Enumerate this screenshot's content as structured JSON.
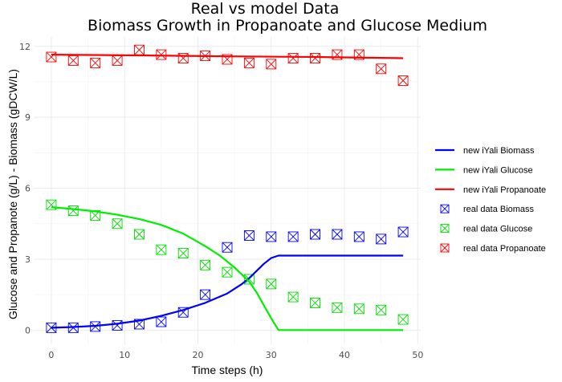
{
  "chart_data": {
    "type": "line",
    "title": "Real vs model Data",
    "subtitle": "Biomass Growth in Propanoate and Glucose Medium",
    "xlabel": "Time steps (h)",
    "ylabel": "Glucose and Propanote (g/L) - Biomass (gDCW/L)",
    "xlim": [
      -2.4,
      50.4
    ],
    "ylim": [
      -0.6,
      12.4
    ],
    "x_ticks": [
      0,
      10,
      20,
      30,
      40,
      50
    ],
    "y_ticks": [
      0,
      3,
      6,
      9,
      12
    ],
    "grid": true,
    "legend_position": "right",
    "series": [
      {
        "name": "new iYali Biomass",
        "kind": "line",
        "color": "#0000ff",
        "x": [
          0,
          3,
          6,
          9,
          12,
          15,
          18,
          21,
          24,
          26,
          27,
          28,
          29,
          30,
          31,
          35,
          40,
          45,
          48
        ],
        "y": [
          0.1,
          0.13,
          0.18,
          0.27,
          0.4,
          0.6,
          0.85,
          1.15,
          1.55,
          1.95,
          2.2,
          2.5,
          2.8,
          3.05,
          3.15,
          3.15,
          3.15,
          3.15,
          3.15
        ]
      },
      {
        "name": "new iYali Glucose",
        "kind": "line",
        "color": "#00ee00",
        "x": [
          0,
          3,
          6,
          9,
          12,
          15,
          18,
          21,
          23,
          25,
          27,
          28,
          29,
          30,
          31,
          35,
          40,
          45,
          48
        ],
        "y": [
          5.2,
          5.12,
          5.02,
          4.88,
          4.7,
          4.45,
          4.08,
          3.55,
          3.15,
          2.65,
          2.05,
          1.6,
          1.05,
          0.5,
          0.0,
          0.0,
          0.0,
          0.0,
          0.0
        ]
      },
      {
        "name": "new iYali Propanoate",
        "kind": "line",
        "color": "#ff0000",
        "x": [
          0,
          12,
          24,
          36,
          48
        ],
        "y": [
          11.65,
          11.62,
          11.58,
          11.55,
          11.5
        ]
      },
      {
        "name": "real data Biomass",
        "kind": "points",
        "color": "#0000ff",
        "x": [
          0,
          3,
          6,
          9,
          12,
          15,
          18,
          21,
          24,
          27,
          30,
          33,
          36,
          39,
          42,
          45,
          48
        ],
        "y": [
          0.1,
          0.1,
          0.15,
          0.2,
          0.25,
          0.35,
          0.75,
          1.5,
          3.5,
          4.0,
          3.95,
          3.95,
          4.05,
          4.05,
          3.95,
          3.85,
          4.15
        ]
      },
      {
        "name": "real data Glucose",
        "kind": "points",
        "color": "#00dd00",
        "x": [
          0,
          3,
          6,
          9,
          12,
          15,
          18,
          21,
          24,
          27,
          30,
          33,
          36,
          39,
          42,
          45,
          48
        ],
        "y": [
          5.3,
          5.05,
          4.85,
          4.5,
          4.05,
          3.4,
          3.25,
          2.75,
          2.45,
          2.15,
          1.95,
          1.4,
          1.15,
          0.95,
          0.9,
          0.85,
          0.45
        ]
      },
      {
        "name": "real data Propanoate",
        "kind": "points",
        "color": "#ff0000",
        "x": [
          0,
          3,
          6,
          9,
          12,
          15,
          18,
          21,
          24,
          27,
          30,
          33,
          36,
          39,
          42,
          45,
          48
        ],
        "y": [
          11.55,
          11.4,
          11.3,
          11.4,
          11.85,
          11.65,
          11.5,
          11.6,
          11.45,
          11.3,
          11.25,
          11.5,
          11.5,
          11.65,
          11.65,
          11.05,
          10.55
        ]
      }
    ]
  }
}
